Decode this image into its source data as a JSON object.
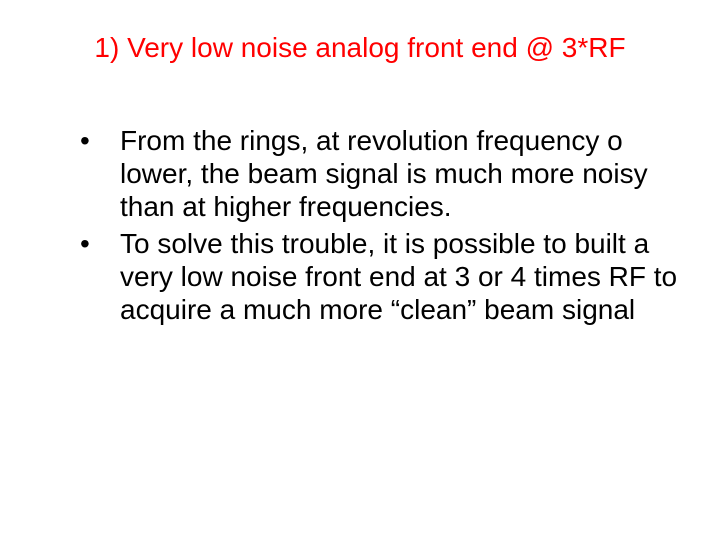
{
  "slide": {
    "title_text": "1) Very low noise analog front end @ 3*RF",
    "title_color": "#ff0000",
    "title_fontsize": 28,
    "body_color": "#000000",
    "body_fontsize": 28,
    "background_color": "#ffffff",
    "bullets": [
      "From the rings, at revolution frequency o lower, the beam signal is much more noisy than at higher frequencies.",
      "To solve this trouble, it is possible to built a very low noise front end at 3 or 4 times RF to acquire a much more “clean” beam signal"
    ]
  }
}
